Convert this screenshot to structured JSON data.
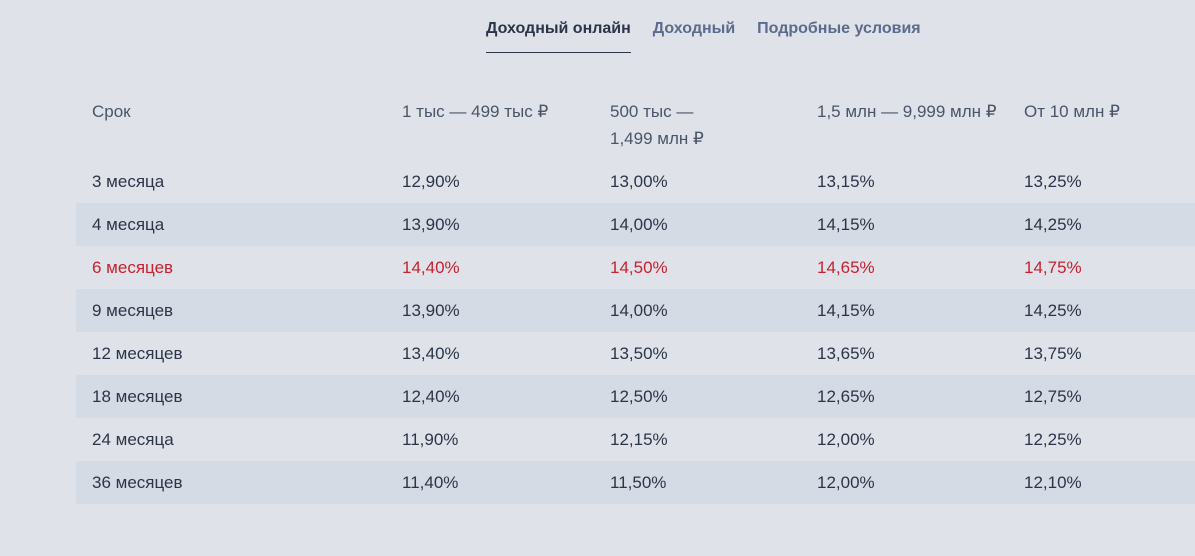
{
  "tabs": [
    {
      "label": "Доходный онлайн",
      "active": true
    },
    {
      "label": "Доходный",
      "active": false
    },
    {
      "label": "Подробные условия",
      "active": false
    }
  ],
  "table": {
    "headers": [
      "Срок",
      "1 тыс — 499 тыс ₽",
      "500 тыс — 1,499 млн ₽",
      "1,5 млн — 9,999 млн ₽",
      "От 10 млн ₽"
    ],
    "rows": [
      {
        "term": "3 месяца",
        "values": [
          "12,90%",
          "13,00%",
          "13,15%",
          "13,25%"
        ]
      },
      {
        "term": "4 месяца",
        "values": [
          "13,90%",
          "14,00%",
          "14,15%",
          "14,25%"
        ]
      },
      {
        "term": "6 месяцев",
        "values": [
          "14,40%",
          "14,50%",
          "14,65%",
          "14,75%"
        ],
        "highlight": true
      },
      {
        "term": "9 месяцев",
        "values": [
          "13,90%",
          "14,00%",
          "14,15%",
          "14,25%"
        ]
      },
      {
        "term": "12 месяцев",
        "values": [
          "13,40%",
          "13,50%",
          "13,65%",
          "13,75%"
        ]
      },
      {
        "term": "18 месяцев",
        "values": [
          "12,40%",
          "12,50%",
          "12,65%",
          "12,75%"
        ]
      },
      {
        "term": "24 месяца",
        "values": [
          "11,90%",
          "12,15%",
          "12,00%",
          "12,25%"
        ]
      },
      {
        "term": "36 месяцев",
        "values": [
          "11,40%",
          "11,50%",
          "12,00%",
          "12,10%"
        ]
      }
    ]
  },
  "colors": {
    "background": "#dfe3e9",
    "row_alt": "#d5dbe4",
    "text": "#2b3448",
    "tab_inactive": "#5b6a8d",
    "highlight": "#c8202f"
  }
}
